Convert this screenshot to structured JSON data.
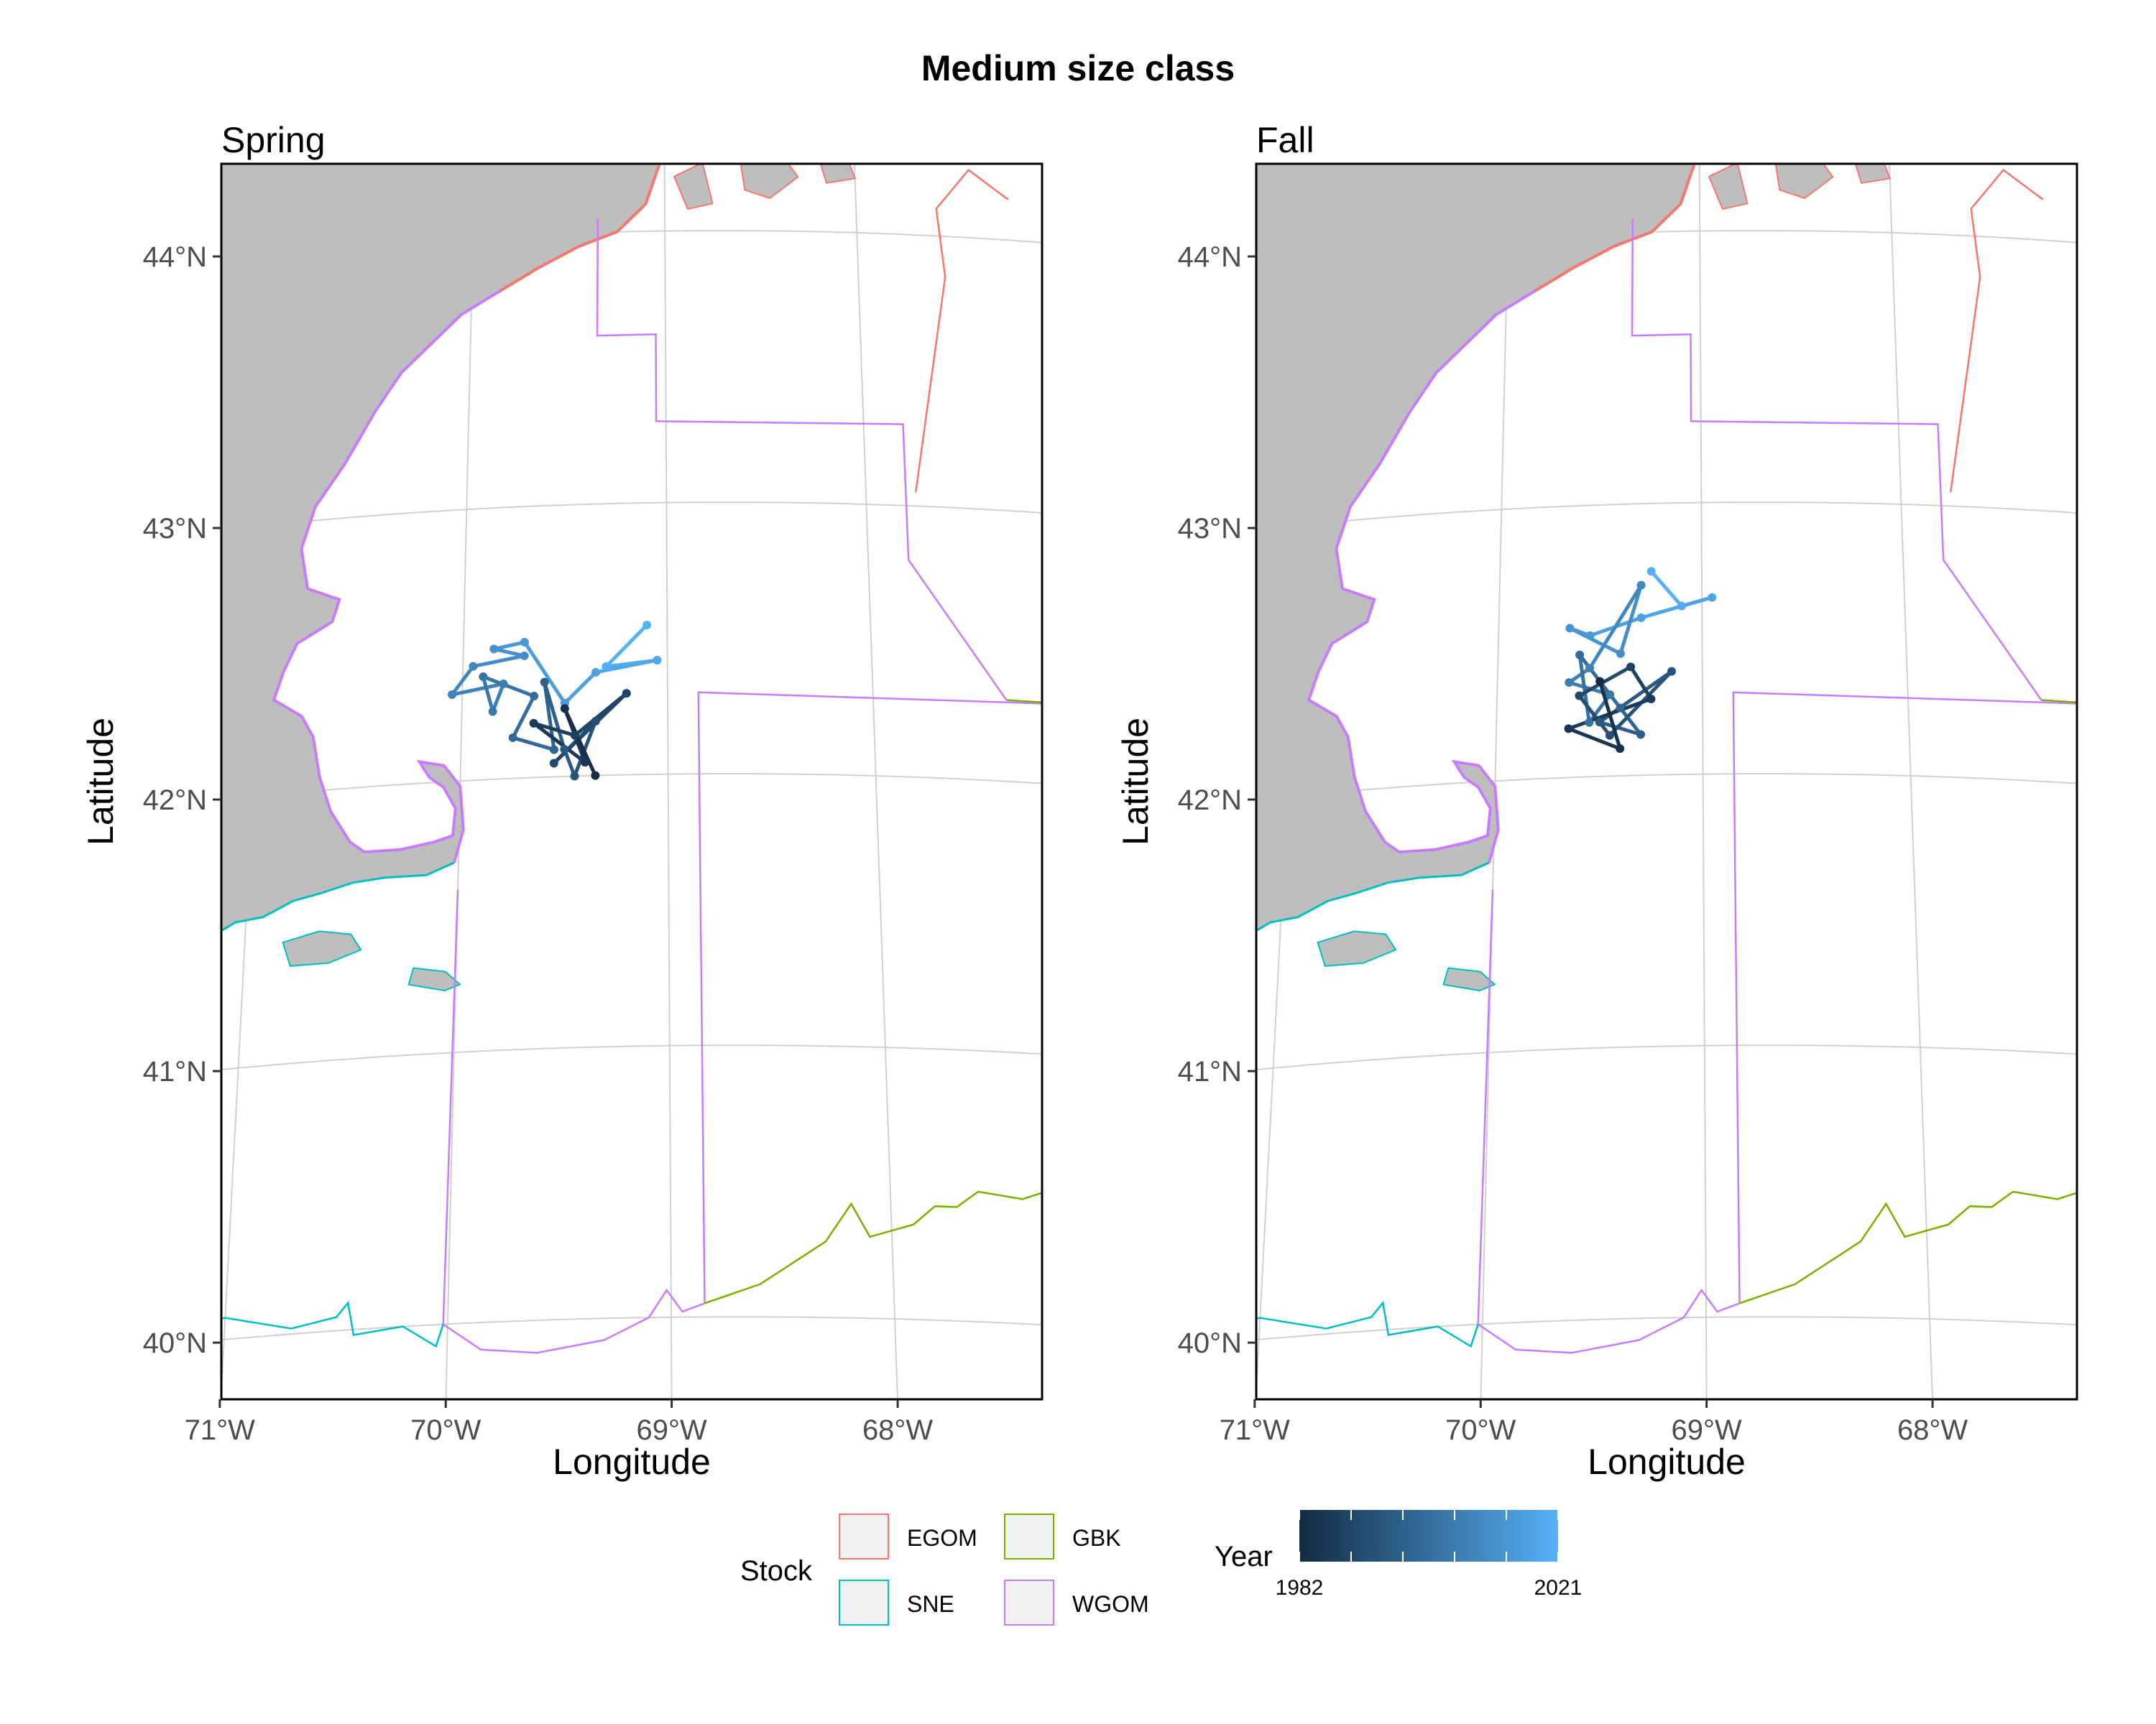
{
  "title": "Medium size class",
  "panels": [
    {
      "label": "Spring"
    },
    {
      "label": "Fall"
    }
  ],
  "axes": {
    "xlabel": "Longitude",
    "ylabel": "Latitude",
    "x_ticks": [
      {
        "lon": -71,
        "label": "71°W"
      },
      {
        "lon": -70,
        "label": "70°W"
      },
      {
        "lon": -69,
        "label": "69°W"
      },
      {
        "lon": -68,
        "label": "68°W"
      }
    ],
    "y_ticks": [
      {
        "lat": 44,
        "label": "44°N"
      },
      {
        "lat": 43,
        "label": "43°N"
      },
      {
        "lat": 42,
        "label": "42°N"
      },
      {
        "lat": 41,
        "label": "41°N"
      },
      {
        "lat": 40,
        "label": "40°N"
      }
    ],
    "xlim": [
      -71.15,
      -67.2
    ],
    "ylim": [
      39.7,
      44.25
    ],
    "grid": true
  },
  "colors": {
    "land": "#bebebe",
    "grid": "#d0d0d0",
    "year_low": "#132b43",
    "year_high": "#56b1f7"
  },
  "legend": {
    "stock_title": "Stock",
    "stocks": [
      {
        "label": "EGOM",
        "color": "#f8766d"
      },
      {
        "label": "GBK",
        "color": "#7cae00"
      },
      {
        "label": "SNE",
        "color": "#00bfc4"
      },
      {
        "label": "WGOM",
        "color": "#c77cff"
      }
    ],
    "year_title": "Year",
    "year_min": "1982",
    "year_max": "2021"
  },
  "chart_data": [
    {
      "type": "map-track",
      "panel": "Spring",
      "description_units": "lon/lat degrees",
      "points": [
        [
          -69.1,
          42.55
        ],
        [
          -69.3,
          42.4
        ],
        [
          -69.05,
          42.42
        ],
        [
          -69.35,
          42.38
        ],
        [
          -69.5,
          42.27
        ],
        [
          -69.7,
          42.5
        ],
        [
          -69.85,
          42.48
        ],
        [
          -69.7,
          42.45
        ],
        [
          -69.95,
          42.42
        ],
        [
          -70.05,
          42.32
        ],
        [
          -69.8,
          42.35
        ],
        [
          -69.85,
          42.25
        ],
        [
          -69.9,
          42.38
        ],
        [
          -69.65,
          42.3
        ],
        [
          -69.75,
          42.15
        ],
        [
          -69.55,
          42.1
        ],
        [
          -69.6,
          42.35
        ],
        [
          -69.5,
          42.1
        ],
        [
          -69.45,
          42.0
        ],
        [
          -69.35,
          42.2
        ],
        [
          -69.55,
          42.05
        ],
        [
          -69.2,
          42.3
        ],
        [
          -69.45,
          42.15
        ],
        [
          -69.65,
          42.2
        ],
        [
          -69.4,
          42.05
        ],
        [
          -69.5,
          42.25
        ],
        [
          -69.35,
          42.0
        ]
      ]
    },
    {
      "type": "map-track",
      "panel": "Fall",
      "description_units": "lon/lat degrees",
      "points": [
        [
          -69.25,
          42.75
        ],
        [
          -69.1,
          42.62
        ],
        [
          -68.95,
          42.65
        ],
        [
          -69.3,
          42.58
        ],
        [
          -69.55,
          42.52
        ],
        [
          -69.65,
          42.55
        ],
        [
          -69.4,
          42.45
        ],
        [
          -69.3,
          42.7
        ],
        [
          -69.55,
          42.4
        ],
        [
          -69.65,
          42.35
        ],
        [
          -69.45,
          42.3
        ],
        [
          -69.55,
          42.2
        ],
        [
          -69.6,
          42.45
        ],
        [
          -69.4,
          42.25
        ],
        [
          -69.3,
          42.15
        ],
        [
          -69.5,
          42.2
        ],
        [
          -69.15,
          42.38
        ],
        [
          -69.45,
          42.15
        ],
        [
          -69.6,
          42.3
        ],
        [
          -69.35,
          42.4
        ],
        [
          -69.25,
          42.28
        ],
        [
          -69.65,
          42.18
        ],
        [
          -69.4,
          42.1
        ],
        [
          -69.5,
          42.35
        ]
      ]
    }
  ]
}
